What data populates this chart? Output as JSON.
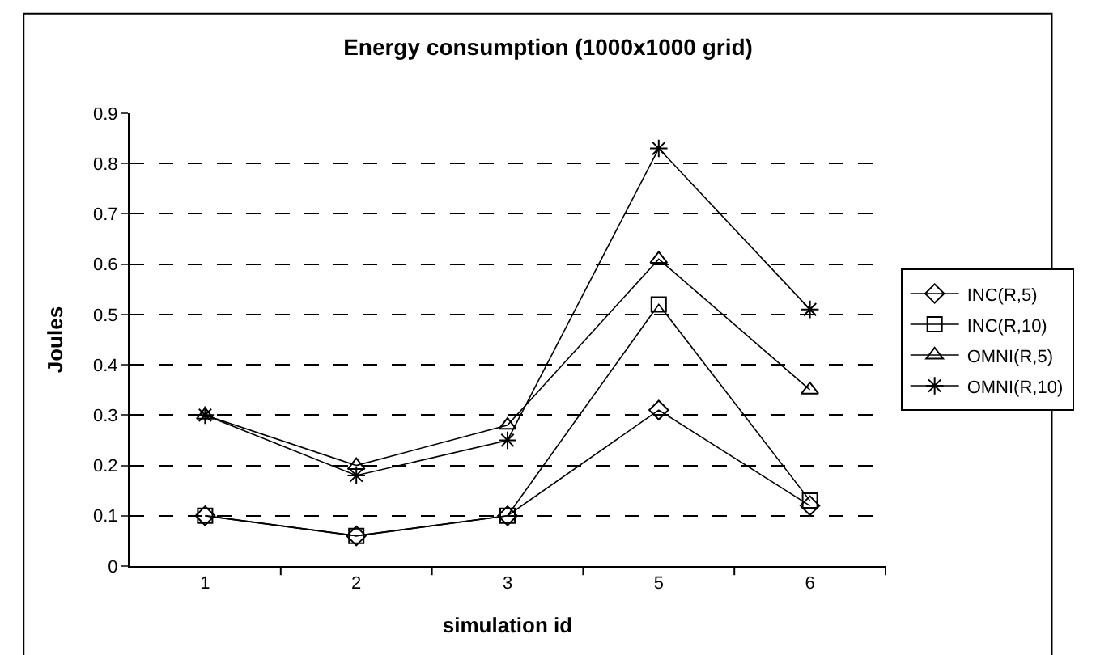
{
  "chart_data": {
    "type": "line",
    "title": "Energy consumption (1000x1000 grid)",
    "xlabel": "simulation id",
    "ylabel": "Joules",
    "categories": [
      "1",
      "2",
      "3",
      "5",
      "6"
    ],
    "series": [
      {
        "name": "INC(R,5)",
        "color": "#000000",
        "marker": "diamond",
        "values": [
          0.1,
          0.06,
          0.1,
          0.31,
          0.12
        ]
      },
      {
        "name": "INC(R,10)",
        "color": "#000000",
        "marker": "square",
        "values": [
          0.1,
          0.06,
          0.1,
          0.52,
          0.13
        ]
      },
      {
        "name": "OMNI(R,5)",
        "color": "#000000",
        "marker": "triangle",
        "values": [
          0.3,
          0.2,
          0.28,
          0.61,
          0.35
        ]
      },
      {
        "name": "OMNI(R,10)",
        "color": "#000000",
        "marker": "cross",
        "values": [
          0.3,
          0.18,
          0.25,
          0.83,
          0.51
        ]
      }
    ],
    "ylim": [
      0,
      0.9
    ],
    "yticks": [
      0,
      0.1,
      0.2,
      0.3,
      0.4,
      0.5,
      0.6,
      0.7,
      0.8,
      0.9
    ],
    "grid": "y",
    "legend": "right",
    "line_style": "solid"
  }
}
